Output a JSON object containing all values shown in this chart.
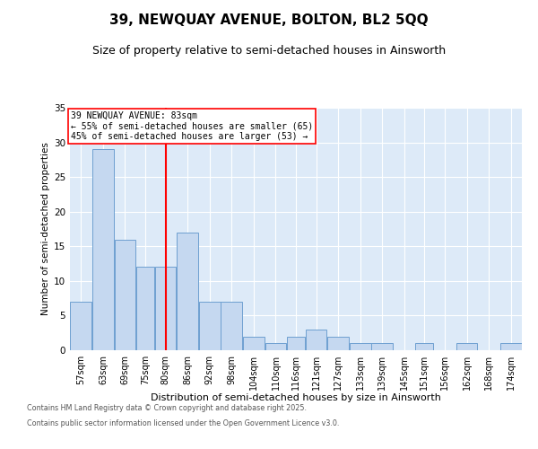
{
  "title": "39, NEWQUAY AVENUE, BOLTON, BL2 5QQ",
  "subtitle": "Size of property relative to semi-detached houses in Ainsworth",
  "xlabel": "Distribution of semi-detached houses by size in Ainsworth",
  "ylabel": "Number of semi-detached properties",
  "categories": [
    "57sqm",
    "63sqm",
    "69sqm",
    "75sqm",
    "80sqm",
    "86sqm",
    "92sqm",
    "98sqm",
    "104sqm",
    "110sqm",
    "116sqm",
    "121sqm",
    "127sqm",
    "133sqm",
    "139sqm",
    "145sqm",
    "151sqm",
    "156sqm",
    "162sqm",
    "168sqm",
    "174sqm"
  ],
  "values": [
    7,
    29,
    16,
    12,
    12,
    17,
    7,
    7,
    2,
    1,
    2,
    3,
    2,
    1,
    1,
    0,
    1,
    0,
    1,
    0,
    1
  ],
  "bar_color": "#c5d8f0",
  "bar_edge_color": "#6ea0d0",
  "property_line_x": 83,
  "bin_edges": [
    57,
    63,
    69,
    75,
    80,
    86,
    92,
    98,
    104,
    110,
    116,
    121,
    127,
    133,
    139,
    145,
    151,
    156,
    162,
    168,
    174,
    180
  ],
  "annotation_title": "39 NEWQUAY AVENUE: 83sqm",
  "annotation_line1": "← 55% of semi-detached houses are smaller (65)",
  "annotation_line2": "45% of semi-detached houses are larger (53) →",
  "ylim": [
    0,
    35
  ],
  "yticks": [
    0,
    5,
    10,
    15,
    20,
    25,
    30,
    35
  ],
  "bg_color": "#ddeaf8",
  "fig_bg_color": "#ffffff",
  "footer_line1": "Contains HM Land Registry data © Crown copyright and database right 2025.",
  "footer_line2": "Contains public sector information licensed under the Open Government Licence v3.0.",
  "title_fontsize": 11,
  "subtitle_fontsize": 9
}
